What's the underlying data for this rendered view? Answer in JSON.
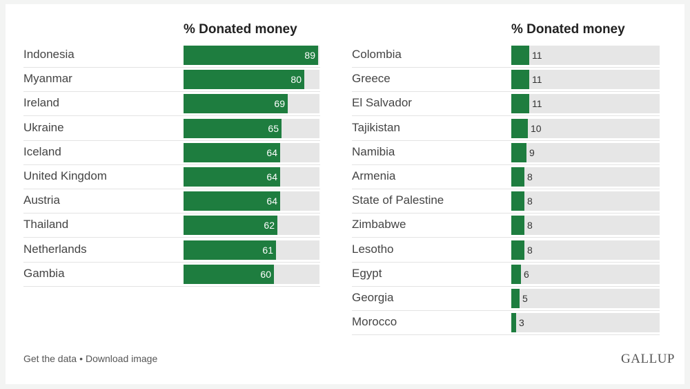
{
  "chart_data": [
    {
      "type": "bar",
      "title": "% Donated money",
      "categories": [
        "Indonesia",
        "Myanmar",
        "Ireland",
        "Ukraine",
        "Iceland",
        "United Kingdom",
        "Austria",
        "Thailand",
        "Netherlands",
        "Gambia"
      ],
      "values": [
        89,
        80,
        69,
        65,
        64,
        64,
        64,
        62,
        61,
        60
      ],
      "xlim": [
        0,
        90
      ],
      "bar_color": "#1e7d3f",
      "track_color": "#e6e6e6"
    },
    {
      "type": "bar",
      "title": "% Donated money",
      "categories": [
        "Colombia",
        "Greece",
        "El Salvador",
        "Tajikistan",
        "Namibia",
        "Armenia",
        "State of Palestine",
        "Zimbabwe",
        "Lesotho",
        "Egypt",
        "Georgia",
        "Morocco"
      ],
      "values": [
        11,
        11,
        11,
        10,
        9,
        8,
        8,
        8,
        8,
        6,
        5,
        3
      ],
      "xlim": [
        0,
        90
      ],
      "bar_color": "#1e7d3f",
      "track_color": "#e6e6e6"
    }
  ],
  "footer": {
    "get_data": "Get the data",
    "separator": "•",
    "download": "Download image"
  },
  "brand": "GALLUP"
}
